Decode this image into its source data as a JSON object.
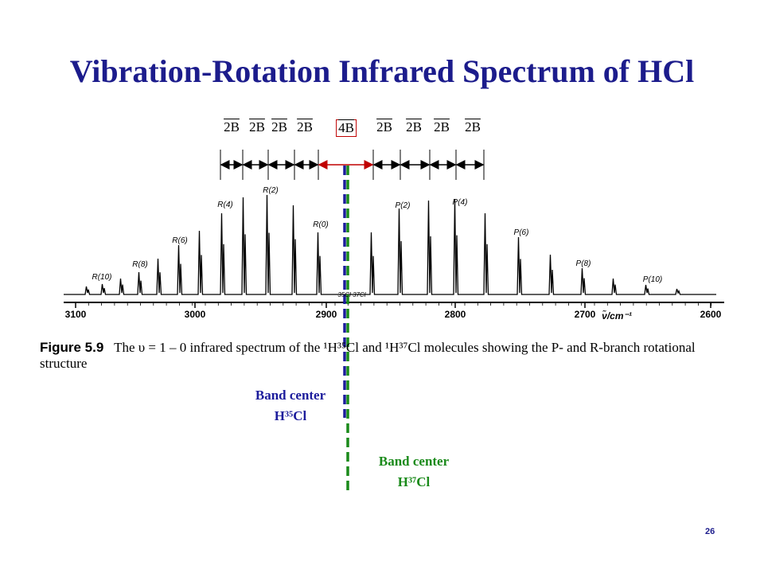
{
  "title": "Vibration-Rotation Infrared Spectrum of HCl",
  "spacing_labels": [
    "2B",
    "2B",
    "2B",
    "2B",
    "4B",
    "2B",
    "2B",
    "2B",
    "2B"
  ],
  "spectrum": {
    "peak_labels": [
      "R(10)",
      "R(8)",
      "R(6)",
      "R(4)",
      "R(2)",
      "R(0)",
      "P(2)",
      "P(4)",
      "P(6)",
      "P(8)",
      "P(10)"
    ],
    "isotope_label": "35Cl 37Cl",
    "axis_ticks": [
      "3100",
      "3000",
      "2900",
      "2800",
      "2700",
      "2600"
    ],
    "axis_label": "ν̃/cm⁻¹"
  },
  "caption": {
    "label": "Figure 5.9",
    "text": "The υ = 1 – 0 infrared spectrum of the ¹H³⁵Cl and ¹H³⁷Cl molecules showing the P- and R-branch rotational structure"
  },
  "band_center_35": {
    "line1": "Band center",
    "line2": "H³⁵Cl"
  },
  "band_center_37": {
    "line1": "Band center",
    "line2": "H³⁷Cl"
  },
  "page_number": "26"
}
